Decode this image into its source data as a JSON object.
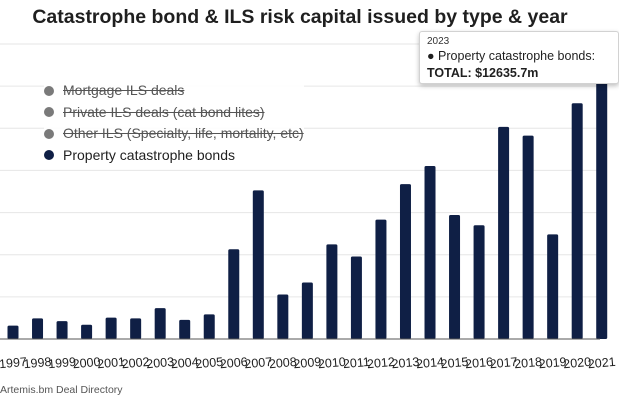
{
  "chart_data": {
    "type": "bar",
    "title": "Catastrophe bond & ILS risk capital issued by type & year",
    "categories": [
      "1997",
      "1998",
      "1999",
      "2000",
      "2001",
      "2002",
      "2003",
      "2004",
      "2005",
      "2006",
      "2007",
      "2008",
      "2009",
      "2010",
      "2011",
      "2012",
      "2013",
      "2014",
      "2015",
      "2016",
      "2017",
      "2018",
      "2019",
      "2020",
      "2021"
    ],
    "series": [
      {
        "name": "Property catastrophe bonds",
        "color": "#0f1f45",
        "visible": true,
        "values": [
          633,
          980,
          847,
          677,
          1017,
          980,
          1463,
          909,
          1171,
          4261,
          7052,
          2110,
          2680,
          4491,
          3918,
          5663,
          7349,
          8211,
          5886,
          5401,
          10066,
          9652,
          4964,
          11187,
          12636
        ]
      },
      {
        "name": "Mortgage ILS deals",
        "visible": false
      },
      {
        "name": "Private ILS deals (cat bond lites)",
        "visible": false
      },
      {
        "name": "Other ILS (Specialty, life, mortality, etc)",
        "visible": false
      }
    ],
    "ylim": [
      0,
      14000
    ],
    "ygrid_step": 2000,
    "grid": true,
    "legend_position": "top-left"
  },
  "tooltip": {
    "year": "2023",
    "series_label": "Property catastrophe bonds:",
    "total_label": "TOTAL: $12635.7m"
  },
  "source": "Artemis.bm Deal Directory"
}
